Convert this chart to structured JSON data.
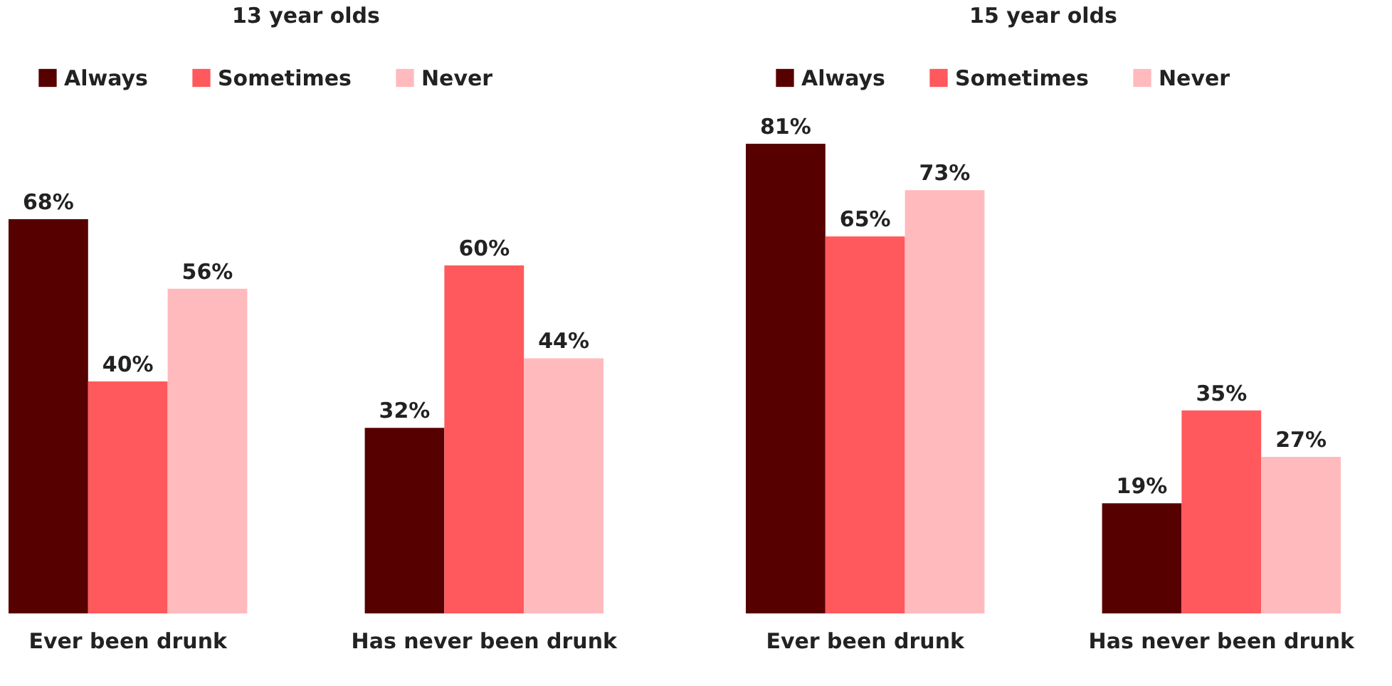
{
  "chart_data": [
    {
      "type": "bar",
      "title": "13 year olds",
      "categories": [
        "Ever been drunk",
        "Has never been drunk"
      ],
      "legend": "top",
      "series": [
        {
          "name": "Always",
          "color": "#560000",
          "values": [
            68,
            32
          ],
          "value_labels": [
            "68%",
            "32%"
          ]
        },
        {
          "name": "Sometimes",
          "color": "#ff585d",
          "values": [
            40,
            60
          ],
          "value_labels": [
            "40%",
            "60%"
          ]
        },
        {
          "name": "Never",
          "color": "#ffbabd",
          "values": [
            56,
            44
          ],
          "value_labels": [
            "56%",
            "44%"
          ]
        }
      ]
    },
    {
      "type": "bar",
      "title": "15 year olds",
      "categories": [
        "Ever been drunk",
        "Has never been drunk"
      ],
      "legend": "top",
      "series": [
        {
          "name": "Always",
          "color": "#560000",
          "values": [
            81,
            19
          ],
          "value_labels": [
            "81%",
            "19%"
          ]
        },
        {
          "name": "Sometimes",
          "color": "#ff585d",
          "values": [
            65,
            35
          ],
          "value_labels": [
            "65%",
            "35%"
          ]
        },
        {
          "name": "Never",
          "color": "#ffbabd",
          "values": [
            73,
            27
          ],
          "value_labels": [
            "73%",
            "27%"
          ]
        }
      ]
    }
  ]
}
